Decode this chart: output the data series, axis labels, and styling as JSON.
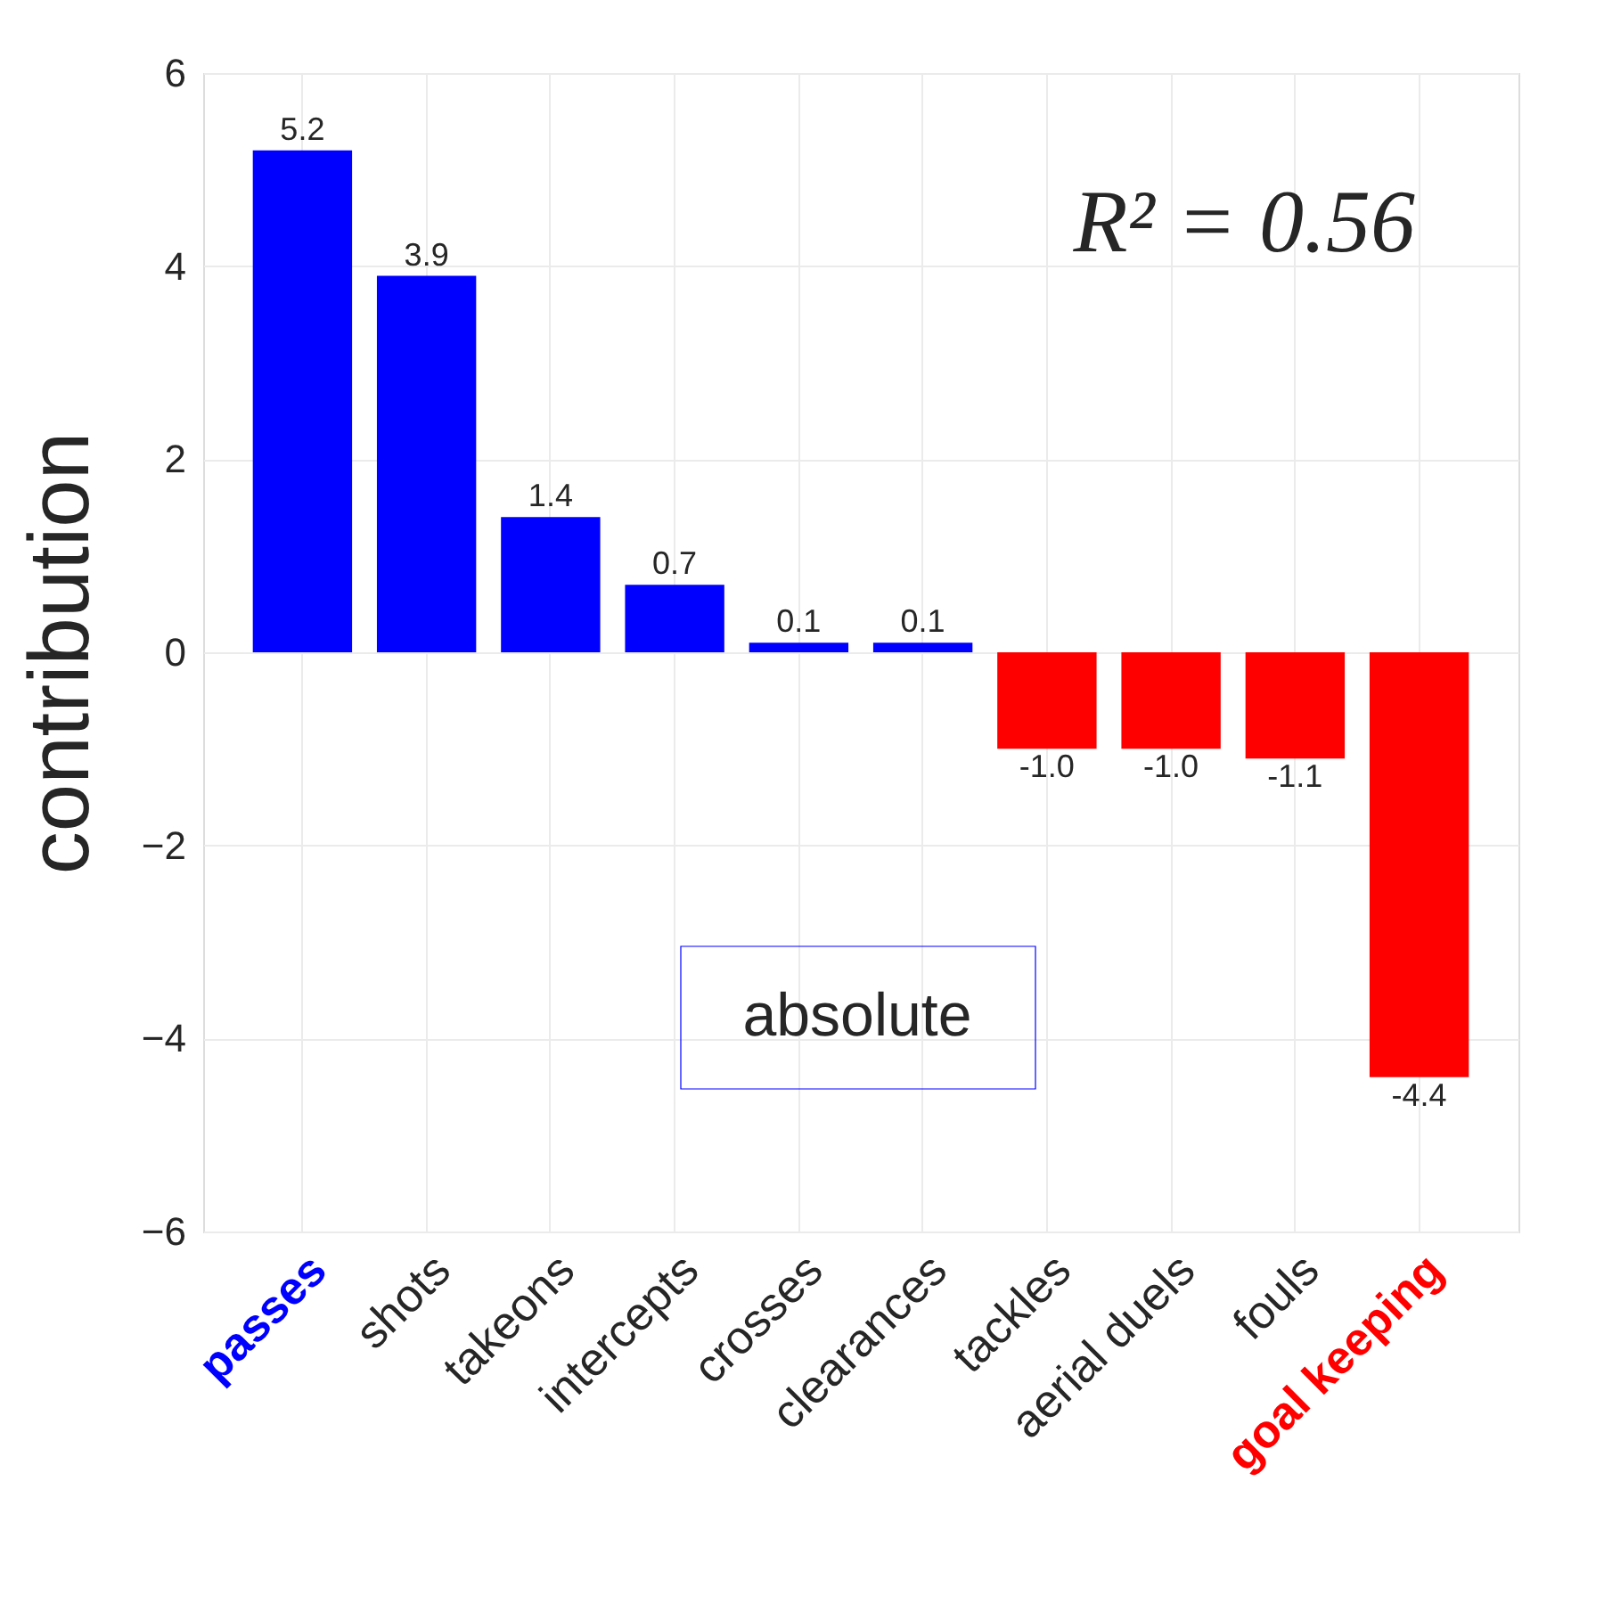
{
  "chart_data": {
    "type": "bar",
    "categories": [
      "passes",
      "shots",
      "takeons",
      "intercepts",
      "crosses",
      "clearances",
      "tackles",
      "aerial duels",
      "fouls",
      "goal keeping"
    ],
    "values": [
      5.2,
      3.9,
      1.4,
      0.7,
      0.1,
      0.1,
      -1.0,
      -1.0,
      -1.1,
      -4.4
    ],
    "colors": [
      "#0000ff",
      "#0000ff",
      "#0000ff",
      "#0000ff",
      "#0000ff",
      "#0000ff",
      "#ff0000",
      "#ff0000",
      "#ff0000",
      "#ff0000"
    ],
    "ylabel": "contribution",
    "ylim": [
      -6,
      6
    ],
    "yticks": [
      -6,
      -4,
      -2,
      0,
      2,
      4,
      6
    ],
    "grid": true,
    "value_labels": [
      "5.2",
      "3.9",
      "1.4",
      "0.7",
      "0.1",
      "0.1",
      "-1.0",
      "-1.0",
      "-1.1",
      "-4.4"
    ],
    "annotations": [
      "R² = 0.56",
      "absolute"
    ]
  }
}
